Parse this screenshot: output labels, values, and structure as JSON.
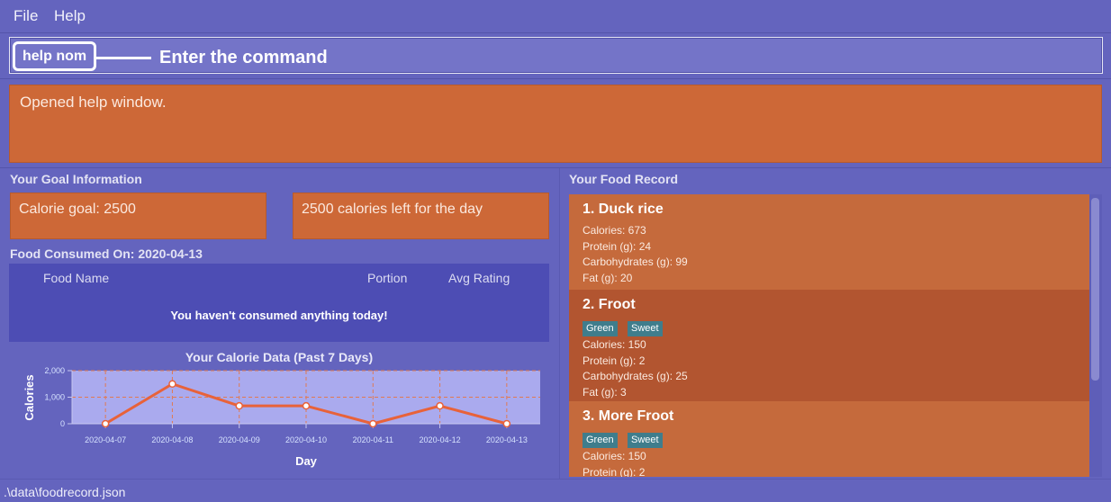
{
  "menu": {
    "file": "File",
    "help": "Help"
  },
  "command_box": {
    "input_value": "help nom",
    "annotation": "Enter the command"
  },
  "result_display": {
    "text": "Opened help window."
  },
  "goal": {
    "title": "Your Goal Information",
    "calorie_goal": "Calorie goal: 2500",
    "calories_left": "2500 calories left for the day"
  },
  "consumed": {
    "title": "Food Consumed On: 2020-04-13",
    "columns": [
      "Food Name",
      "Portion",
      "Avg Rating"
    ],
    "empty_message": "You haven't consumed anything today!"
  },
  "chart_data": {
    "type": "line",
    "title": "Your Calorie Data (Past 7 Days)",
    "xlabel": "Day",
    "ylabel": "Calories",
    "categories": [
      "2020-04-07",
      "2020-04-08",
      "2020-04-09",
      "2020-04-10",
      "2020-04-11",
      "2020-04-12",
      "2020-04-13"
    ],
    "series": [
      {
        "values": [
          0,
          1500,
          673,
          673,
          0,
          673,
          0
        ]
      }
    ],
    "ylim": [
      0,
      2000
    ],
    "yticks": [
      0,
      1000,
      2000
    ],
    "ytick_labels": [
      "0",
      "1,000",
      "2,000"
    ],
    "grid": true,
    "colors": {
      "line": "#e8623a",
      "plot_bg": "#aaaaee",
      "grid": "#e07a52",
      "tick_text": "#d6e2ff"
    }
  },
  "food_record": {
    "title": "Your Food Record",
    "items": [
      {
        "index": "1.",
        "name": "Duck rice",
        "tags": [],
        "details": [
          "Calories: 673",
          "Protein (g): 24",
          "Carbohydrates (g): 99",
          "Fat (g): 20"
        ],
        "color": "#c56a3c"
      },
      {
        "index": "2.",
        "name": "Froot",
        "tags": [
          "Green",
          "Sweet"
        ],
        "details": [
          "Calories: 150",
          "Protein (g): 2",
          "Carbohydrates (g): 25",
          "Fat (g): 3"
        ],
        "color": "#b25530"
      },
      {
        "index": "3.",
        "name": "More Froot",
        "tags": [
          "Green",
          "Sweet"
        ],
        "details": [
          "Calories: 150",
          "Protein (g): 2"
        ],
        "color": "#c56a3c"
      }
    ]
  },
  "status_bar": {
    "path": ".\\data\\foodrecord.json"
  }
}
